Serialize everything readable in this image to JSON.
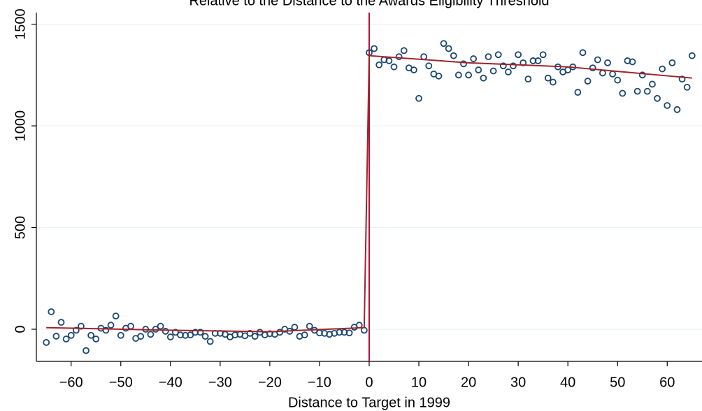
{
  "chart_data": {
    "type": "scatter",
    "title": "Relative to the Distance to the Awards Eligibility Threshold",
    "x_label": "Distance to Target in 1999",
    "xlim": [
      -67,
      67
    ],
    "ylim": [
      -158,
      1557
    ],
    "xticks": [
      {
        "value": -60,
        "label": "−60"
      },
      {
        "value": -50,
        "label": "−50"
      },
      {
        "value": -40,
        "label": "−40"
      },
      {
        "value": -30,
        "label": "−30"
      },
      {
        "value": -20,
        "label": "−20"
      },
      {
        "value": -10,
        "label": "−10"
      },
      0,
      10,
      20,
      30,
      40,
      50,
      60
    ],
    "yticks": [
      0,
      500,
      1000,
      1500
    ],
    "grid": true,
    "vline": 0,
    "vline_color": "#b5123a",
    "series": [
      {
        "type": "scatter",
        "color": "#1a476f",
        "x": [
          -65,
          -64,
          -63,
          -62,
          -61,
          -60,
          -59,
          -58,
          -57,
          -56,
          -55,
          -54,
          -53,
          -52,
          -51,
          -50,
          -49,
          -48,
          -47,
          -46,
          -45,
          -44,
          -43,
          -42,
          -41,
          -40,
          -39,
          -38,
          -37,
          -36,
          -35,
          -34,
          -33,
          -32,
          -31,
          -30,
          -29,
          -28,
          -27,
          -26,
          -25,
          -24,
          -23,
          -22,
          -21,
          -20,
          -19,
          -18,
          -17,
          -16,
          -15,
          -14,
          -13,
          -12,
          -11,
          -10,
          -9,
          -8,
          -7,
          -6,
          -5,
          -4,
          -3,
          -2,
          -1,
          0,
          1,
          2,
          3,
          4,
          5,
          6,
          7,
          8,
          9,
          10,
          11,
          12,
          13,
          14,
          15,
          16,
          17,
          18,
          19,
          20,
          21,
          22,
          23,
          24,
          25,
          26,
          27,
          28,
          29,
          30,
          31,
          32,
          33,
          34,
          35,
          36,
          37,
          38,
          39,
          40,
          41,
          42,
          43,
          44,
          45,
          46,
          47,
          48,
          49,
          50,
          51,
          52,
          53,
          54,
          55,
          56,
          57,
          58,
          59,
          60,
          61,
          62,
          63,
          64,
          65
        ],
        "values": [
          -65,
          86,
          -34,
          34,
          -48,
          -30,
          -5,
          15,
          -105,
          -30,
          -48,
          5,
          -5,
          20,
          65,
          -30,
          5,
          15,
          -45,
          -35,
          0,
          -25,
          0,
          15,
          -10,
          -38,
          -15,
          -28,
          -30,
          -28,
          -15,
          -15,
          -35,
          -60,
          -20,
          -20,
          -25,
          -38,
          -28,
          -25,
          -32,
          -20,
          -35,
          -15,
          -28,
          -22,
          -25,
          -15,
          0,
          -10,
          10,
          -35,
          -28,
          15,
          -5,
          -18,
          -20,
          -25,
          -20,
          -15,
          -15,
          -18,
          10,
          20,
          -5,
          1360,
          1380,
          1300,
          1325,
          1320,
          1290,
          1340,
          1370,
          1285,
          1275,
          1135,
          1340,
          1295,
          1255,
          1245,
          1405,
          1380,
          1345,
          1250,
          1305,
          1250,
          1330,
          1275,
          1235,
          1340,
          1270,
          1350,
          1295,
          1265,
          1295,
          1350,
          1310,
          1230,
          1320,
          1320,
          1350,
          1235,
          1215,
          1290,
          1265,
          1275,
          1290,
          1165,
          1360,
          1220,
          1285,
          1325,
          1260,
          1310,
          1255,
          1225,
          1160,
          1320,
          1315,
          1170,
          1250,
          1170,
          1205,
          1135,
          1280,
          1100,
          1310,
          1080,
          1230,
          1190,
          1345
        ]
      },
      {
        "type": "line",
        "color": "#a0232a",
        "x": [
          -65,
          -40,
          -20,
          -1,
          0,
          20,
          40,
          65
        ],
        "values": [
          8,
          -5,
          -12,
          8,
          1345,
          1310,
          1290,
          1235
        ]
      }
    ]
  }
}
